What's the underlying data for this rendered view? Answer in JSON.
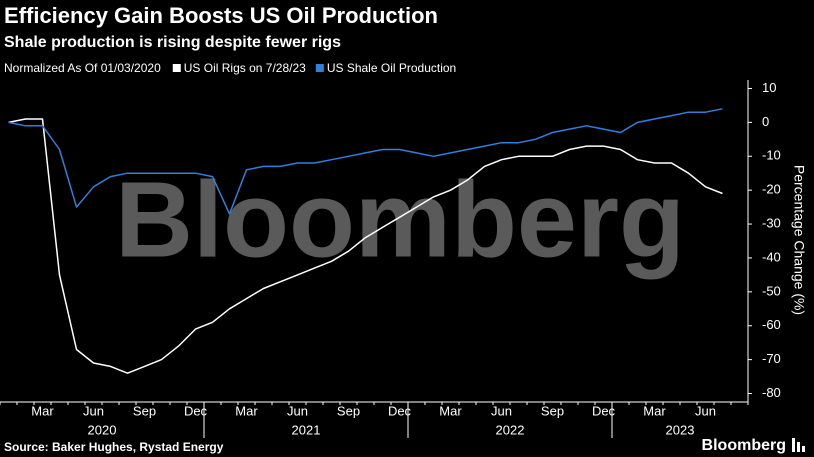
{
  "chart_data": {
    "type": "line",
    "title": "Efficiency Gain Boosts US Oil Production",
    "subtitle": "Shale production is rising despite fewer rigs",
    "note": "Normalized As Of 01/03/2020",
    "y_label": "Percentage Change (%)",
    "source": "Source: Baker Hughes, Rystad Energy",
    "logo": "Bloomberg",
    "watermark": "Bloomberg",
    "x": [
      "2020-01",
      "2020-02",
      "2020-03",
      "2020-04",
      "2020-05",
      "2020-06",
      "2020-07",
      "2020-08",
      "2020-09",
      "2020-10",
      "2020-11",
      "2020-12",
      "2021-01",
      "2021-02",
      "2021-03",
      "2021-04",
      "2021-05",
      "2021-06",
      "2021-07",
      "2021-08",
      "2021-09",
      "2021-10",
      "2021-11",
      "2021-12",
      "2022-01",
      "2022-02",
      "2022-03",
      "2022-04",
      "2022-05",
      "2022-06",
      "2022-07",
      "2022-08",
      "2022-09",
      "2022-10",
      "2022-11",
      "2022-12",
      "2023-01",
      "2023-02",
      "2023-03",
      "2023-04",
      "2023-05",
      "2023-06",
      "2023-07"
    ],
    "xlim": [
      "2020-01",
      "2023-08"
    ],
    "xticks": [
      {
        "value": "2020-03",
        "label": "Mar"
      },
      {
        "value": "2020-06",
        "label": "Jun"
      },
      {
        "value": "2020-09",
        "label": "Sep"
      },
      {
        "value": "2020-12",
        "label": "Dec"
      },
      {
        "value": "2021-03",
        "label": "Mar"
      },
      {
        "value": "2021-06",
        "label": "Jun"
      },
      {
        "value": "2021-09",
        "label": "Sep"
      },
      {
        "value": "2021-12",
        "label": "Dec"
      },
      {
        "value": "2022-03",
        "label": "Mar"
      },
      {
        "value": "2022-06",
        "label": "Jun"
      },
      {
        "value": "2022-09",
        "label": "Sep"
      },
      {
        "value": "2022-12",
        "label": "Dec"
      },
      {
        "value": "2023-03",
        "label": "Mar"
      },
      {
        "value": "2023-06",
        "label": "Jun"
      }
    ],
    "year_labels": [
      "2020",
      "2021",
      "2022",
      "2023"
    ],
    "ylim": [
      -82.5,
      12.5
    ],
    "yticks": [
      10,
      0,
      -10,
      -20,
      -30,
      -40,
      -50,
      -60,
      -70,
      -80
    ],
    "grid": false,
    "series": [
      {
        "name": "US Oil Rigs on 7/28/23",
        "color": "#ffffff",
        "values": [
          0,
          1,
          1,
          -45,
          -67,
          -71,
          -72,
          -74,
          -72,
          -70,
          -66,
          -61,
          -59,
          -55,
          -52,
          -49,
          -47,
          -45,
          -43,
          -41,
          -38,
          -34,
          -31,
          -28,
          -25,
          -22,
          -20,
          -17,
          -13,
          -11,
          -10,
          -10,
          -10,
          -8,
          -7,
          -7,
          -8,
          -11,
          -12,
          -12,
          -15,
          -19,
          -21
        ]
      },
      {
        "name": "US Shale Oil Production",
        "color": "#2f7fdc",
        "values": [
          0,
          -1,
          -1,
          -8,
          -25,
          -19,
          -16,
          -15,
          -15,
          -15,
          -15,
          -15,
          -16,
          -27,
          -14,
          -13,
          -13,
          -12,
          -12,
          -11,
          -10,
          -9,
          -8,
          -8,
          -9,
          -10,
          -9,
          -8,
          -7,
          -6,
          -6,
          -5,
          -3,
          -2,
          -1,
          -2,
          -3,
          0,
          1,
          2,
          3,
          3,
          4
        ]
      }
    ]
  }
}
